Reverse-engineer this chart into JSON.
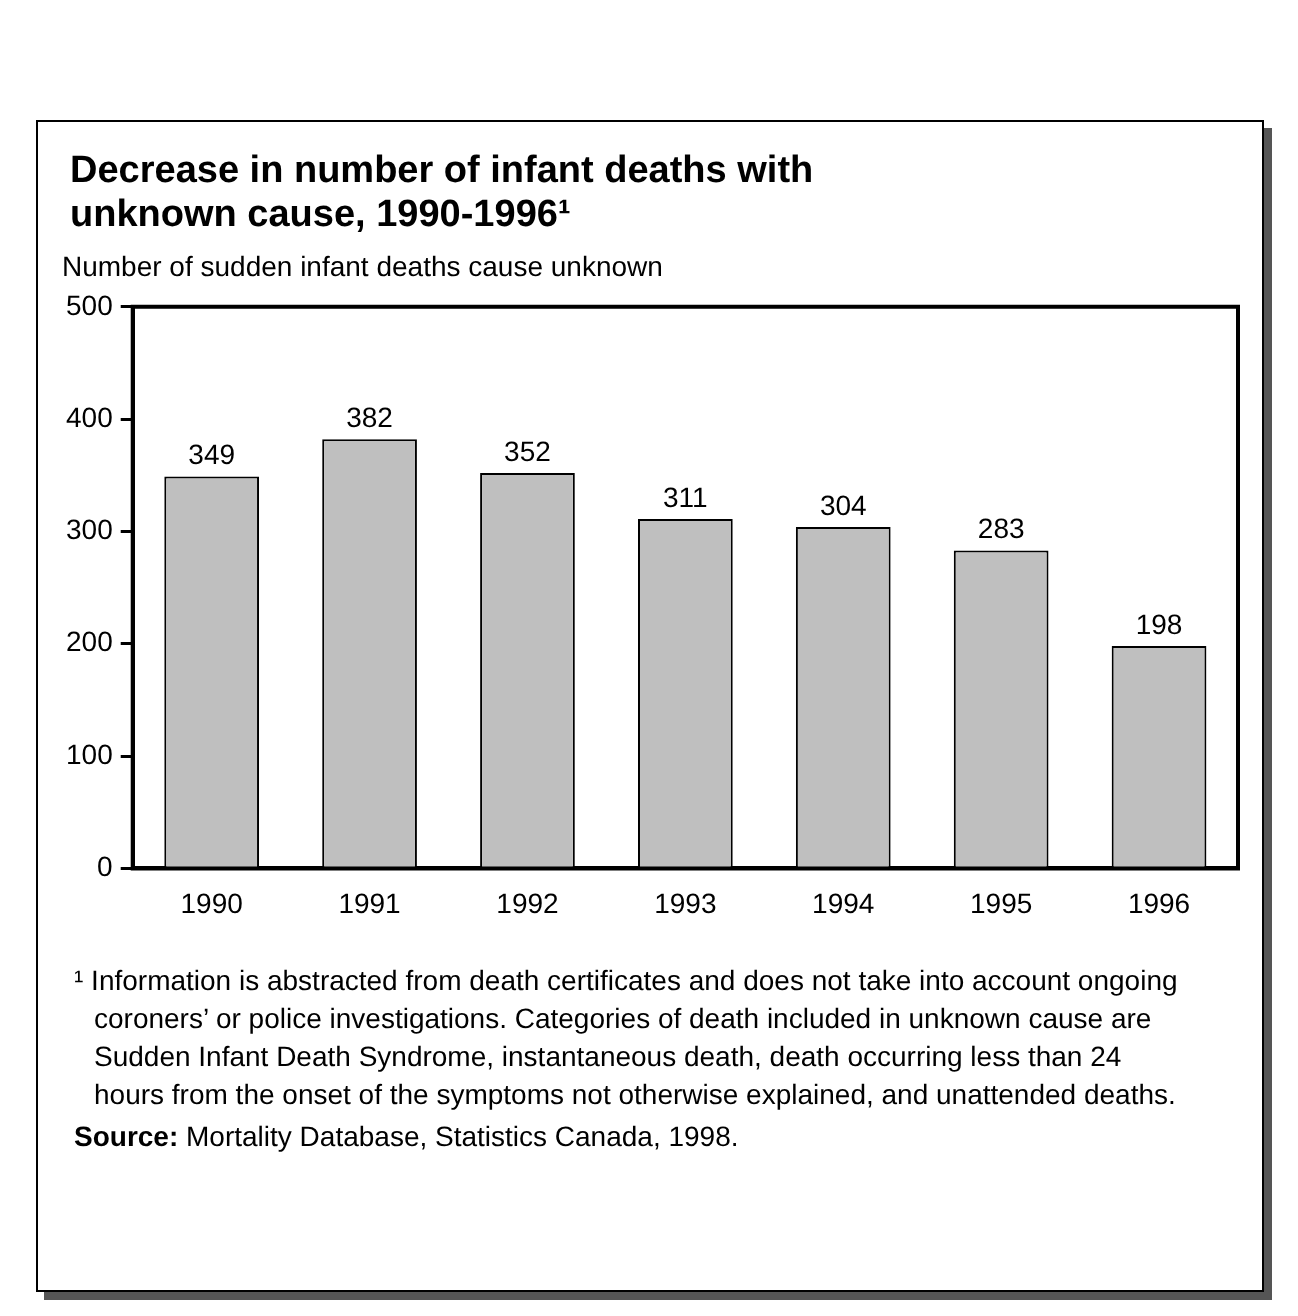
{
  "chart_data": {
    "type": "bar",
    "title": "Decrease in number of infant deaths with unknown cause, 1990-1996¹",
    "ylabel": "Number of sudden infant deaths cause unknown",
    "categories": [
      "1990",
      "1991",
      "1992",
      "1993",
      "1994",
      "1995",
      "1996"
    ],
    "values": [
      349,
      382,
      352,
      311,
      304,
      283,
      198
    ],
    "color": "#bfbfbf",
    "data_labels": true,
    "ylim": [
      0,
      500
    ],
    "yticks": [
      0,
      100,
      200,
      300,
      400,
      500
    ],
    "grid": false,
    "legend": false,
    "annotations": [
      "¹ Information is abstracted from death certificates and does not take into account ongoing coroners’ or police investigations. Categories of death included in unknown cause are Sudden Infant Death Syndrome, instantaneous death, death occurring less than 24 hours from the onset of the symptoms not otherwise explained, and unattended deaths.",
      "Source:  Mortality Database, Statistics Canada, 1998."
    ]
  }
}
